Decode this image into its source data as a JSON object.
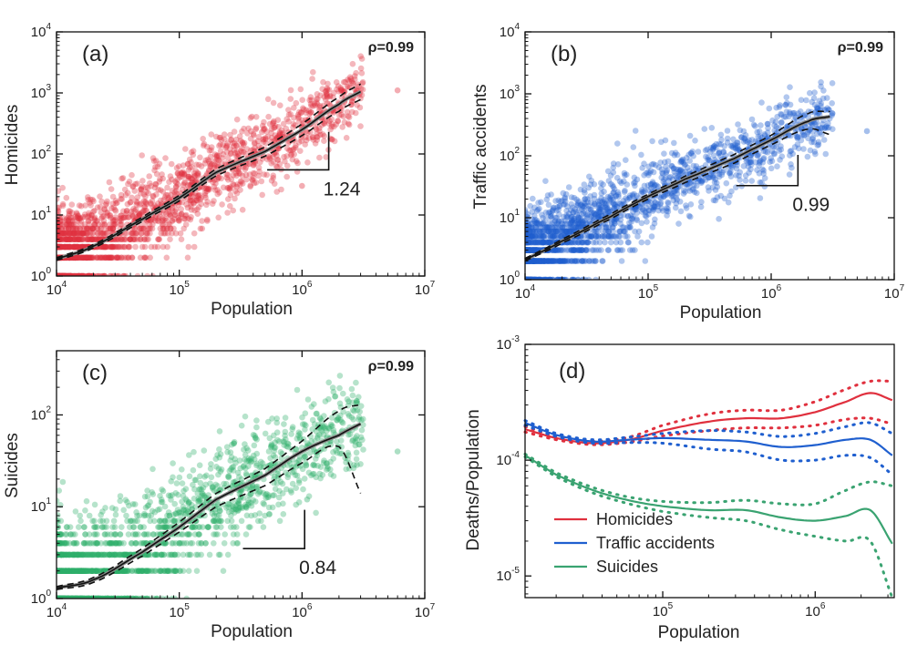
{
  "chart_data": [
    {
      "type": "scatter",
      "panel_label": "(a)",
      "ylabel": "Homicides",
      "xlabel": "Population",
      "xscale": "log",
      "yscale": "log",
      "xlim": [
        10000,
        10000000
      ],
      "ylim": [
        1,
        10000
      ],
      "rho_text": "ρ=0.99",
      "slope_text": "1.24",
      "slope": 1.24,
      "point_color": "#e0303e",
      "y_offset": 0.3,
      "y_spread": 0.36,
      "y_floor": 1.0,
      "fit": {
        "x": [
          10000,
          20000,
          50000,
          100000,
          200000,
          500000,
          1000000,
          2000000,
          3000000
        ],
        "y": [
          1.9,
          3.1,
          8.5,
          19.0,
          50.0,
          110.0,
          250.0,
          650.0,
          1050.0
        ]
      },
      "fit_upper": [
        2.0,
        3.3,
        9.2,
        21.0,
        57.0,
        130.0,
        310.0,
        850.0,
        1400.0
      ],
      "fit_lower": [
        1.8,
        2.9,
        7.8,
        17.0,
        44.0,
        92.0,
        200.0,
        500.0,
        780.0
      ],
      "outliers": [
        [
          6000000,
          1100
        ],
        [
          2500000,
          1700
        ],
        [
          1000000,
          30
        ]
      ]
    },
    {
      "type": "scatter",
      "panel_label": "(b)",
      "ylabel": "Traffic accidents",
      "xlabel": "Population",
      "xscale": "log",
      "yscale": "log",
      "xlim": [
        10000,
        10000000
      ],
      "ylim": [
        1,
        10000
      ],
      "rho_text": "ρ=0.99",
      "slope_text": "0.99",
      "slope": 0.99,
      "point_color": "#1f5fcf",
      "y_offset": 0.33,
      "y_spread": 0.34,
      "y_floor": 1.0,
      "fit": {
        "x": [
          10000,
          20000,
          50000,
          100000,
          200000,
          500000,
          1000000,
          2000000,
          3000000
        ],
        "y": [
          2.1,
          4.2,
          10.5,
          22.0,
          42.0,
          90.0,
          180.0,
          360.0,
          430.0
        ]
      },
      "fit_upper": [
        2.2,
        4.5,
        11.5,
        24.0,
        47.0,
        105.0,
        215.0,
        480.0,
        520.0
      ],
      "fit_lower": [
        2.0,
        3.9,
        9.6,
        20.0,
        37.0,
        76.0,
        150.0,
        270.0,
        220.0
      ],
      "outliers": [
        [
          6000000,
          250
        ],
        [
          2500000,
          550
        ],
        [
          700000,
          110
        ]
      ]
    },
    {
      "type": "scatter",
      "panel_label": "(c)",
      "ylabel": "Suicides",
      "xlabel": "Population",
      "xscale": "log",
      "yscale": "log",
      "xlim": [
        10000,
        10000000
      ],
      "ylim": [
        1,
        500
      ],
      "rho_text": "ρ=0.99",
      "slope_text": "0.84",
      "slope": 0.84,
      "point_color": "#2fb06b",
      "y_offset": -0.05,
      "y_spread": 0.32,
      "y_floor": 1.0,
      "fit": {
        "x": [
          10000,
          20000,
          50000,
          100000,
          200000,
          500000,
          1000000,
          2000000,
          3000000
        ],
        "y": [
          1.3,
          1.6,
          3.2,
          6.0,
          12.0,
          22.0,
          40.0,
          60.0,
          80.0
        ]
      },
      "fit_upper": [
        1.35,
        1.7,
        3.5,
        6.8,
        14.0,
        26.0,
        52.0,
        110.0,
        130.0
      ],
      "fit_lower": [
        1.25,
        1.5,
        2.9,
        5.3,
        10.0,
        17.0,
        30.0,
        45.0,
        14.0
      ],
      "outliers": [
        [
          6000000,
          40
        ],
        [
          2400000,
          140
        ],
        [
          1100000,
          12
        ]
      ]
    },
    {
      "type": "line",
      "panel_label": "(d)",
      "ylabel": "Deaths/Population",
      "xlabel": "Population",
      "xscale": "log",
      "yscale": "log",
      "xlim": [
        12500,
        3300000
      ],
      "ylim": [
        6.5e-06,
        0.001
      ],
      "x": [
        12500,
        20000,
        35000,
        60000,
        100000,
        200000,
        350000,
        600000,
        1000000,
        1600000,
        2300000,
        3200000
      ],
      "series": [
        {
          "name": "Homicides",
          "color": "#e0303e",
          "values": [
            0.000185,
            0.000155,
            0.00014,
            0.00015,
            0.00018,
            0.000215,
            0.00023,
            0.00023,
            0.00026,
            0.00032,
            0.00038,
            0.00033
          ],
          "upper": [
            0.000195,
            0.00016,
            0.000145,
            0.000158,
            0.0002,
            0.00025,
            0.00027,
            0.00027,
            0.00032,
            0.00041,
            0.00048,
            0.00048
          ],
          "lower": [
            0.000175,
            0.00015,
            0.000136,
            0.000143,
            0.000162,
            0.00018,
            0.00019,
            0.00019,
            0.0002,
            0.000225,
            0.00023,
            0.000205
          ]
        },
        {
          "name": "Traffic accidents",
          "color": "#1f5fcf",
          "values": [
            0.00021,
            0.000165,
            0.000145,
            0.00015,
            0.000155,
            0.00015,
            0.000145,
            0.00013,
            0.000135,
            0.00015,
            0.00015,
            0.00011
          ],
          "upper": [
            0.00022,
            0.00017,
            0.00015,
            0.000158,
            0.00017,
            0.00018,
            0.000175,
            0.00016,
            0.00017,
            0.000195,
            0.00021,
            0.00017
          ],
          "lower": [
            0.0002,
            0.00016,
            0.00014,
            0.000142,
            0.00014,
            0.000125,
            0.000118,
            0.0001,
            0.0001,
            0.00011,
            0.000105,
            7.5e-05
          ]
        },
        {
          "name": "Suicides",
          "color": "#3aa371",
          "values": [
            0.00011,
            7.5e-05,
            5.5e-05,
            4.5e-05,
            4e-05,
            3.7e-05,
            3.7e-05,
            3.2e-05,
            3e-05,
            3.3e-05,
            3.7e-05,
            1.9e-05
          ],
          "upper": [
            0.000113,
            7.8e-05,
            5.8e-05,
            4.8e-05,
            4.4e-05,
            4.3e-05,
            4.5e-05,
            4.2e-05,
            4.2e-05,
            5.5e-05,
            6.5e-05,
            6e-05
          ],
          "lower": [
            0.000107,
            7.2e-05,
            5.2e-05,
            4.2e-05,
            3.6e-05,
            3.2e-05,
            3e-05,
            2.5e-05,
            2.2e-05,
            2e-05,
            2e-05,
            6.5e-06
          ]
        }
      ],
      "legend": {
        "placement": "bottom-left"
      }
    }
  ]
}
